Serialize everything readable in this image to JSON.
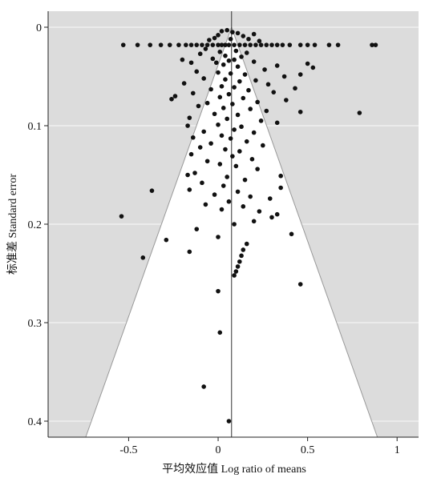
{
  "chart_data": {
    "type": "scatter",
    "subtype": "funnel-plot",
    "xlabel": "平均效应值 Log ratio of means",
    "ylabel": "标准差 Standard error",
    "xlim": [
      -0.95,
      1.12
    ],
    "ylim": [
      0,
      0.415
    ],
    "y_inverted": true,
    "x_ticks": [
      -0.5,
      0,
      0.5,
      1
    ],
    "x_tick_labels": [
      "-0.5",
      "0",
      "0.5",
      "1"
    ],
    "y_ticks": [
      0,
      0.1,
      0.2,
      0.3,
      0.4
    ],
    "y_tick_labels": [
      "0",
      "0.1",
      "0.2",
      "0.3",
      "0.4"
    ],
    "grid": true,
    "pooled_effect": 0.075,
    "funnel": {
      "apex_se": 0,
      "base_se": 0.415,
      "base_left": -0.74,
      "base_right": 0.89
    },
    "colors": {
      "background": "#dcdcdc",
      "funnel_fill": "#ffffff",
      "points": "#111111",
      "grid": "#f4f4f4"
    },
    "points": [
      {
        "x": -0.53,
        "y": 0.018
      },
      {
        "x": -0.45,
        "y": 0.018
      },
      {
        "x": -0.38,
        "y": 0.018
      },
      {
        "x": -0.32,
        "y": 0.018
      },
      {
        "x": -0.27,
        "y": 0.018
      },
      {
        "x": -0.22,
        "y": 0.018
      },
      {
        "x": -0.18,
        "y": 0.018
      },
      {
        "x": -0.15,
        "y": 0.018
      },
      {
        "x": -0.12,
        "y": 0.018
      },
      {
        "x": -0.09,
        "y": 0.018
      },
      {
        "x": -0.06,
        "y": 0.018
      },
      {
        "x": -0.03,
        "y": 0.018
      },
      {
        "x": 0.0,
        "y": 0.018
      },
      {
        "x": 0.02,
        "y": 0.018
      },
      {
        "x": 0.04,
        "y": 0.018
      },
      {
        "x": 0.06,
        "y": 0.018
      },
      {
        "x": 0.09,
        "y": 0.018
      },
      {
        "x": 0.12,
        "y": 0.018
      },
      {
        "x": 0.15,
        "y": 0.018
      },
      {
        "x": 0.18,
        "y": 0.018
      },
      {
        "x": 0.21,
        "y": 0.018
      },
      {
        "x": 0.24,
        "y": 0.018
      },
      {
        "x": 0.27,
        "y": 0.018
      },
      {
        "x": 0.3,
        "y": 0.018
      },
      {
        "x": 0.33,
        "y": 0.018
      },
      {
        "x": 0.36,
        "y": 0.018
      },
      {
        "x": 0.4,
        "y": 0.018
      },
      {
        "x": 0.46,
        "y": 0.018
      },
      {
        "x": 0.5,
        "y": 0.018
      },
      {
        "x": 0.54,
        "y": 0.018
      },
      {
        "x": 0.62,
        "y": 0.018
      },
      {
        "x": 0.67,
        "y": 0.018
      },
      {
        "x": 0.86,
        "y": 0.018
      },
      {
        "x": 0.88,
        "y": 0.018
      },
      {
        "x": 0.02,
        "y": 0.004
      },
      {
        "x": 0.05,
        "y": 0.003
      },
      {
        "x": 0.08,
        "y": 0.005
      },
      {
        "x": 0.11,
        "y": 0.006
      },
      {
        "x": 0.0,
        "y": 0.008
      },
      {
        "x": 0.14,
        "y": 0.009
      },
      {
        "x": -0.02,
        "y": 0.011
      },
      {
        "x": 0.17,
        "y": 0.012
      },
      {
        "x": 0.2,
        "y": 0.007
      },
      {
        "x": 0.23,
        "y": 0.014
      },
      {
        "x": -0.05,
        "y": 0.013
      },
      {
        "x": 0.07,
        "y": 0.012
      },
      {
        "x": -0.07,
        "y": 0.022
      },
      {
        "x": 0.01,
        "y": 0.025
      },
      {
        "x": 0.1,
        "y": 0.024
      },
      {
        "x": 0.16,
        "y": 0.026
      },
      {
        "x": -0.1,
        "y": 0.027
      },
      {
        "x": 0.04,
        "y": 0.029
      },
      {
        "x": 0.13,
        "y": 0.03
      },
      {
        "x": -0.03,
        "y": 0.032
      },
      {
        "x": 0.06,
        "y": 0.034
      },
      {
        "x": 0.09,
        "y": 0.033
      },
      {
        "x": -0.01,
        "y": 0.036
      },
      {
        "x": 0.2,
        "y": 0.035
      },
      {
        "x": -0.2,
        "y": 0.033
      },
      {
        "x": -0.15,
        "y": 0.036
      },
      {
        "x": 0.03,
        "y": 0.038
      },
      {
        "x": 0.11,
        "y": 0.04
      },
      {
        "x": 0.5,
        "y": 0.037
      },
      {
        "x": 0.53,
        "y": 0.041
      },
      {
        "x": 0.33,
        "y": 0.039
      },
      {
        "x": 0.26,
        "y": 0.043
      },
      {
        "x": -0.12,
        "y": 0.045
      },
      {
        "x": 0.0,
        "y": 0.046
      },
      {
        "x": 0.07,
        "y": 0.047
      },
      {
        "x": 0.15,
        "y": 0.048
      },
      {
        "x": 0.37,
        "y": 0.05
      },
      {
        "x": 0.46,
        "y": 0.048
      },
      {
        "x": -0.08,
        "y": 0.052
      },
      {
        "x": 0.04,
        "y": 0.053
      },
      {
        "x": 0.12,
        "y": 0.055
      },
      {
        "x": 0.21,
        "y": 0.054
      },
      {
        "x": -0.19,
        "y": 0.057
      },
      {
        "x": 0.28,
        "y": 0.058
      },
      {
        "x": 0.02,
        "y": 0.06
      },
      {
        "x": 0.09,
        "y": 0.061
      },
      {
        "x": -0.04,
        "y": 0.063
      },
      {
        "x": 0.17,
        "y": 0.064
      },
      {
        "x": 0.43,
        "y": 0.062
      },
      {
        "x": 0.31,
        "y": 0.066
      },
      {
        "x": -0.14,
        "y": 0.067
      },
      {
        "x": 0.06,
        "y": 0.068
      },
      {
        "x": -0.26,
        "y": 0.073
      },
      {
        "x": -0.24,
        "y": 0.07
      },
      {
        "x": 0.01,
        "y": 0.071
      },
      {
        "x": 0.14,
        "y": 0.072
      },
      {
        "x": 0.38,
        "y": 0.074
      },
      {
        "x": 0.22,
        "y": 0.076
      },
      {
        "x": -0.06,
        "y": 0.077
      },
      {
        "x": 0.08,
        "y": 0.078
      },
      {
        "x": -0.11,
        "y": 0.08
      },
      {
        "x": 0.03,
        "y": 0.082
      },
      {
        "x": 0.18,
        "y": 0.083
      },
      {
        "x": 0.27,
        "y": 0.085
      },
      {
        "x": 0.46,
        "y": 0.086
      },
      {
        "x": 0.79,
        "y": 0.087
      },
      {
        "x": -0.02,
        "y": 0.088
      },
      {
        "x": 0.11,
        "y": 0.089
      },
      {
        "x": -0.16,
        "y": 0.092
      },
      {
        "x": 0.05,
        "y": 0.093
      },
      {
        "x": 0.24,
        "y": 0.095
      },
      {
        "x": 0.33,
        "y": 0.097
      },
      {
        "x": -0.17,
        "y": 0.1
      },
      {
        "x": 0.0,
        "y": 0.099
      },
      {
        "x": 0.13,
        "y": 0.101
      },
      {
        "x": 0.09,
        "y": 0.104
      },
      {
        "x": -0.08,
        "y": 0.106
      },
      {
        "x": 0.2,
        "y": 0.107
      },
      {
        "x": 0.02,
        "y": 0.11
      },
      {
        "x": -0.14,
        "y": 0.112
      },
      {
        "x": 0.07,
        "y": 0.113
      },
      {
        "x": 0.16,
        "y": 0.116
      },
      {
        "x": -0.04,
        "y": 0.118
      },
      {
        "x": 0.25,
        "y": 0.12
      },
      {
        "x": -0.1,
        "y": 0.122
      },
      {
        "x": 0.04,
        "y": 0.124
      },
      {
        "x": 0.12,
        "y": 0.126
      },
      {
        "x": -0.15,
        "y": 0.129
      },
      {
        "x": 0.08,
        "y": 0.131
      },
      {
        "x": 0.19,
        "y": 0.134
      },
      {
        "x": -0.06,
        "y": 0.136
      },
      {
        "x": 0.01,
        "y": 0.139
      },
      {
        "x": 0.1,
        "y": 0.141
      },
      {
        "x": 0.22,
        "y": 0.144
      },
      {
        "x": -0.13,
        "y": 0.148
      },
      {
        "x": -0.17,
        "y": 0.15
      },
      {
        "x": 0.05,
        "y": 0.152
      },
      {
        "x": 0.15,
        "y": 0.155
      },
      {
        "x": 0.35,
        "y": 0.151
      },
      {
        "x": -0.09,
        "y": 0.158
      },
      {
        "x": 0.03,
        "y": 0.161
      },
      {
        "x": 0.35,
        "y": 0.163
      },
      {
        "x": -0.16,
        "y": 0.165
      },
      {
        "x": 0.11,
        "y": 0.167
      },
      {
        "x": -0.37,
        "y": 0.166
      },
      {
        "x": -0.02,
        "y": 0.17
      },
      {
        "x": 0.18,
        "y": 0.172
      },
      {
        "x": 0.29,
        "y": 0.174
      },
      {
        "x": 0.06,
        "y": 0.177
      },
      {
        "x": -0.07,
        "y": 0.18
      },
      {
        "x": 0.14,
        "y": 0.182
      },
      {
        "x": 0.02,
        "y": 0.185
      },
      {
        "x": 0.23,
        "y": 0.187
      },
      {
        "x": 0.33,
        "y": 0.19
      },
      {
        "x": -0.54,
        "y": 0.192
      },
      {
        "x": 0.3,
        "y": 0.193
      },
      {
        "x": 0.2,
        "y": 0.197
      },
      {
        "x": 0.09,
        "y": 0.2
      },
      {
        "x": -0.12,
        "y": 0.205
      },
      {
        "x": 0.41,
        "y": 0.21
      },
      {
        "x": -0.29,
        "y": 0.216
      },
      {
        "x": 0.0,
        "y": 0.213
      },
      {
        "x": 0.16,
        "y": 0.22
      },
      {
        "x": 0.14,
        "y": 0.226
      },
      {
        "x": -0.16,
        "y": 0.228
      },
      {
        "x": 0.13,
        "y": 0.232
      },
      {
        "x": -0.42,
        "y": 0.234
      },
      {
        "x": 0.12,
        "y": 0.238
      },
      {
        "x": 0.11,
        "y": 0.243
      },
      {
        "x": 0.1,
        "y": 0.248
      },
      {
        "x": 0.09,
        "y": 0.252
      },
      {
        "x": 0.46,
        "y": 0.261
      },
      {
        "x": 0.0,
        "y": 0.268
      },
      {
        "x": 0.01,
        "y": 0.31
      },
      {
        "x": -0.08,
        "y": 0.365
      },
      {
        "x": 0.06,
        "y": 0.4
      }
    ]
  }
}
